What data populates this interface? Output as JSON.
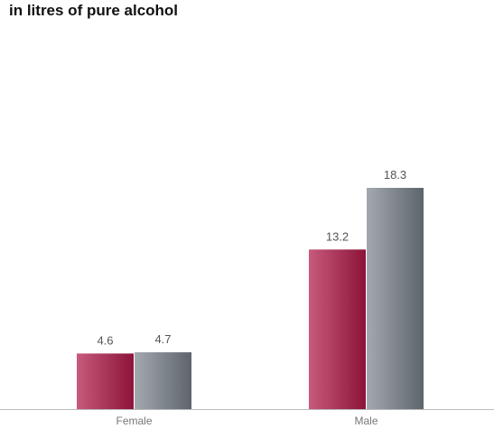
{
  "chart_data": {
    "type": "bar",
    "title": "in litres of pure alcohol",
    "xlabel": "",
    "ylabel": "",
    "categories": [
      "Female",
      "Male"
    ],
    "series": [
      {
        "values": [
          4.6,
          13.2
        ]
      },
      {
        "values": [
          4.7,
          18.3
        ]
      }
    ],
    "ylim": [
      0,
      20
    ],
    "grid": false,
    "legend": "none",
    "data_labels": [
      [
        "4.6",
        "13.2"
      ],
      [
        "4.7",
        "18.3"
      ]
    ],
    "colors": {
      "series_gradients": [
        [
          "#c75a7c",
          "#8c1438"
        ],
        [
          "#a4a9b0",
          "#5d646c"
        ]
      ],
      "axis": "#bbbbbb",
      "value_label": "#555555",
      "tick_label": "#777777"
    }
  }
}
